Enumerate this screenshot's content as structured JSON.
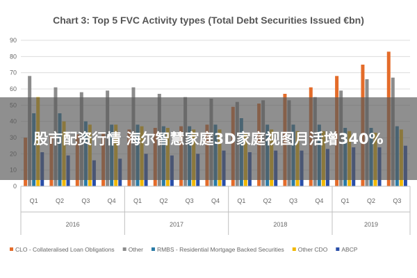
{
  "overlay": {
    "headline": "股市配资行情 海尔智慧家庭3D家庭视图月活增340%"
  },
  "chart_data": {
    "type": "bar",
    "title": "Chart 3: Top 5 FVC Activity types (Total Debt Securities Issued €bn)",
    "ylim": [
      0,
      90
    ],
    "yticks": [
      0,
      10,
      20,
      30,
      40,
      50,
      60,
      70,
      80,
      90
    ],
    "grid": true,
    "legend_position": "bottom",
    "categories": [
      "Q1",
      "Q2",
      "Q3",
      "Q4",
      "Q1",
      "Q2",
      "Q3",
      "Q4",
      "Q1",
      "Q2",
      "Q3",
      "Q4",
      "Q1",
      "Q2",
      "Q3"
    ],
    "year_groups": [
      {
        "label": "2016",
        "count": 4
      },
      {
        "label": "2017",
        "count": 4
      },
      {
        "label": "2018",
        "count": 4
      },
      {
        "label": "2019",
        "count": 3
      }
    ],
    "series": [
      {
        "name": "CLO - Collateralised Loan Obligations",
        "color": "#e46c2a",
        "values": [
          30,
          31,
          32,
          33,
          35,
          36,
          37,
          38,
          49,
          51,
          57,
          61,
          68,
          75,
          83
        ]
      },
      {
        "name": "Other",
        "color": "#8c8c8c",
        "values": [
          68,
          61,
          58,
          59,
          61,
          57,
          55,
          54,
          52,
          53,
          53,
          55,
          59,
          66,
          67
        ]
      },
      {
        "name": "RMBS - Residential Mortgage Backed Securities",
        "color": "#2a7ba6",
        "values": [
          45,
          45,
          40,
          38,
          38,
          37,
          37,
          38,
          42,
          38,
          38,
          38,
          36,
          36,
          37
        ]
      },
      {
        "name": "Other CDO",
        "color": "#f2b800",
        "values": [
          55,
          40,
          38,
          38,
          37,
          36,
          35,
          35,
          33,
          35,
          34,
          34,
          34,
          33,
          35
        ]
      },
      {
        "name": "ABCP",
        "color": "#2a4fa8",
        "values": [
          21,
          19,
          16,
          17,
          20,
          19,
          20,
          22,
          21,
          22,
          22,
          23,
          24,
          24,
          25
        ]
      }
    ]
  }
}
